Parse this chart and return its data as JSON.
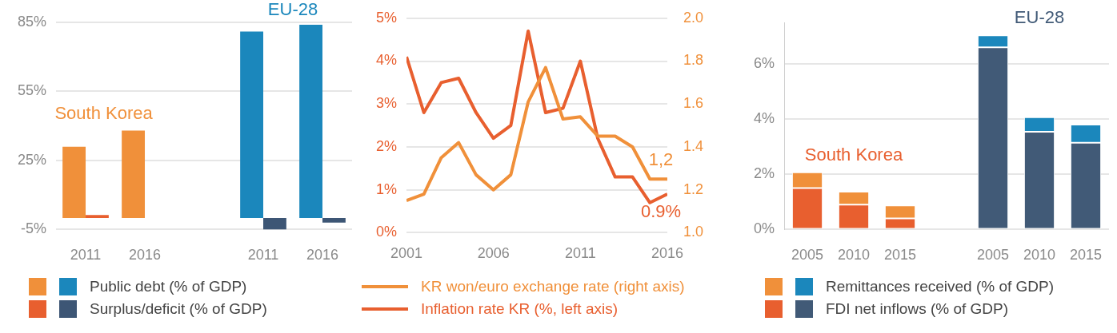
{
  "chart_data": [
    {
      "type": "bar",
      "categories": [
        "2011",
        "2016",
        null,
        "2011",
        "2016"
      ],
      "series": [
        {
          "name": "Public debt (% of GDP)",
          "colors": [
            "#f0903a",
            "#f0903a",
            null,
            "#1b87bc",
            "#1b87bc"
          ],
          "values": [
            31,
            38,
            null,
            81,
            84
          ]
        },
        {
          "name": "Surplus/deficit (% of GDP)",
          "colors": [
            "#e85f2f",
            "#e85f2f",
            null,
            "#3d5675",
            "#3d5675"
          ],
          "values": [
            1.3,
            null,
            null,
            -5,
            -2
          ]
        }
      ],
      "ylim": [
        -5,
        85
      ],
      "yticks": [
        {
          "value": -5,
          "label": "-5%"
        },
        {
          "value": 25,
          "label": "25%"
        },
        {
          "value": 55,
          "label": "55%"
        },
        {
          "value": 85,
          "label": "85%"
        }
      ],
      "annotations": [
        "South Korea",
        "EU-28"
      ],
      "grid": "y",
      "legend": "bottom"
    },
    {
      "type": "line",
      "x": [
        2001,
        2002,
        2003,
        2004,
        2005,
        2006,
        2007,
        2008,
        2009,
        2010,
        2011,
        2012,
        2013,
        2014,
        2015,
        2016
      ],
      "series": [
        {
          "name": "KR won/euro exchange rate (right axis)",
          "color": "#f0903a",
          "axis": "y2",
          "values": [
            1.15,
            1.18,
            1.35,
            1.42,
            1.27,
            1.2,
            1.27,
            1.61,
            1.77,
            1.53,
            1.54,
            1.45,
            1.45,
            1.4,
            1.25,
            1.25
          ]
        },
        {
          "name": "Inflation rate KR (%, left axis)",
          "color": "#e85f2f",
          "values": [
            4.1,
            2.8,
            3.5,
            3.6,
            2.8,
            2.2,
            2.5,
            4.7,
            2.8,
            2.9,
            4.0,
            2.2,
            1.3,
            1.3,
            0.7,
            0.9
          ]
        }
      ],
      "xlim": [
        2001,
        2016
      ],
      "xticks": [
        2001,
        2006,
        2011,
        2016
      ],
      "ylim": [
        0,
        5
      ],
      "yticks": [
        {
          "value": 0,
          "label": "0%"
        },
        {
          "value": 1,
          "label": "1%"
        },
        {
          "value": 2,
          "label": "2%"
        },
        {
          "value": 3,
          "label": "3%"
        },
        {
          "value": 4,
          "label": "4%"
        },
        {
          "value": 5,
          "label": "5%"
        }
      ],
      "y2lim": [
        1,
        2
      ],
      "y2ticks": [
        {
          "value": 1,
          "label": "1.0"
        },
        {
          "value": 1.2,
          "label": "1.2"
        },
        {
          "value": 1.4,
          "label": "1.4"
        },
        {
          "value": 1.6,
          "label": "1.6"
        },
        {
          "value": 1.8,
          "label": "1.8"
        },
        {
          "value": 2,
          "label": "2.0"
        }
      ],
      "annotations": [
        "1,2",
        "0.9%"
      ],
      "grid": "y",
      "legend": "bottom",
      "marker": "none"
    },
    {
      "type": "bar",
      "stacked": true,
      "categories": [
        "2005",
        "2010",
        "2015",
        null,
        "2005",
        "2010",
        "2015"
      ],
      "series": [
        {
          "name": "FDI net inflows (% of GDP)",
          "colors": [
            "#e85f2f",
            "#e85f2f",
            "#e85f2f",
            null,
            "#415a77",
            "#415a77",
            "#415a77"
          ],
          "values": [
            1.5,
            0.9,
            0.4,
            null,
            6.6,
            3.54,
            3.14
          ]
        },
        {
          "name": "Remittances received (% of GDP)",
          "colors": [
            "#f0903a",
            "#f0903a",
            "#f0903a",
            null,
            "#1b87bc",
            "#1b87bc",
            "#1b87bc"
          ],
          "values": [
            0.57,
            0.47,
            0.47,
            null,
            0.43,
            0.53,
            0.66
          ]
        }
      ],
      "ylim": [
        0,
        7.5
      ],
      "yticks": [
        {
          "value": 0,
          "label": "0%"
        },
        {
          "value": 2,
          "label": "2%"
        },
        {
          "value": 4,
          "label": "4%"
        },
        {
          "value": 6,
          "label": "6%"
        }
      ],
      "annotations": [
        "South Korea",
        "EU-28"
      ],
      "grid": "y",
      "legend": "bottom"
    }
  ]
}
